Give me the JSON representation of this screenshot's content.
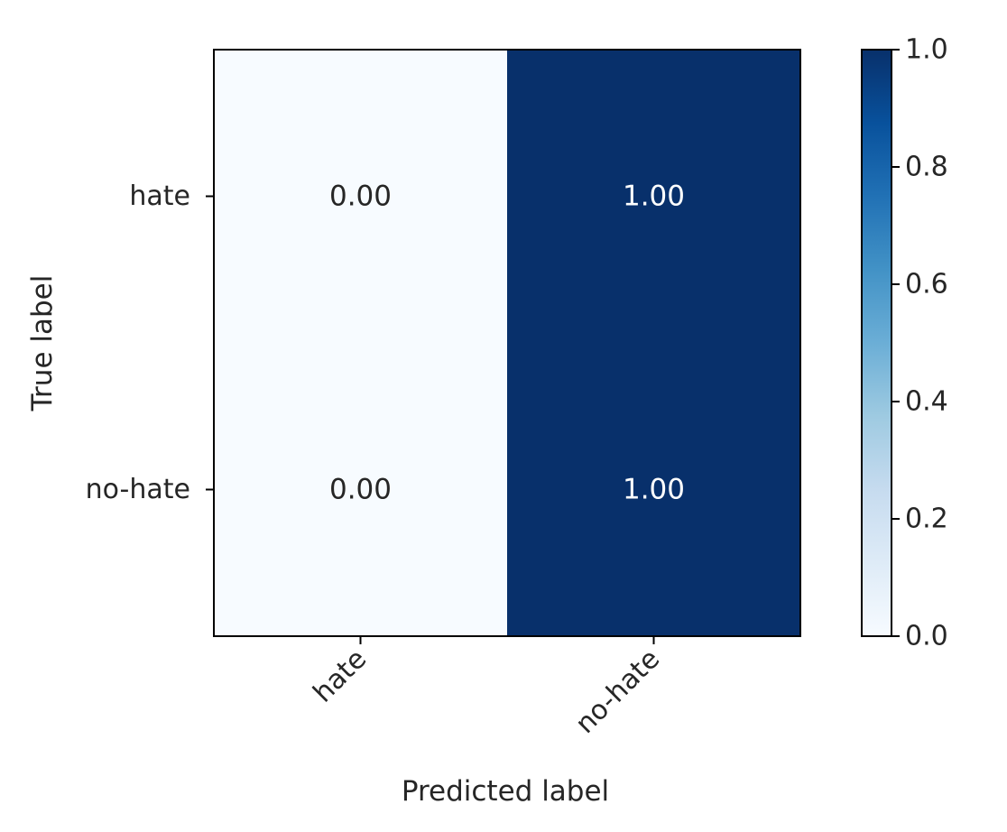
{
  "chart_data": {
    "type": "heatmap",
    "title": "",
    "xlabel": "Predicted label",
    "ylabel": "True label",
    "x_categories": [
      "hate",
      "no-hate"
    ],
    "y_categories": [
      "hate",
      "no-hate"
    ],
    "values": [
      [
        0.0,
        1.0
      ],
      [
        0.0,
        1.0
      ]
    ],
    "cell_labels": [
      [
        "0.00",
        "1.00"
      ],
      [
        "0.00",
        "1.00"
      ]
    ],
    "colormap": "Blues",
    "color_low": "#f7fbff",
    "color_high": "#08306b",
    "colorbar": {
      "range": [
        0.0,
        1.0
      ],
      "ticks": [
        0.0,
        0.2,
        0.4,
        0.6,
        0.8,
        1.0
      ],
      "tick_labels": [
        "0.0",
        "0.2",
        "0.4",
        "0.6",
        "0.8",
        "1.0"
      ]
    },
    "x_tick_rotation": 45,
    "grid": false,
    "legend": "colorbar-right"
  }
}
